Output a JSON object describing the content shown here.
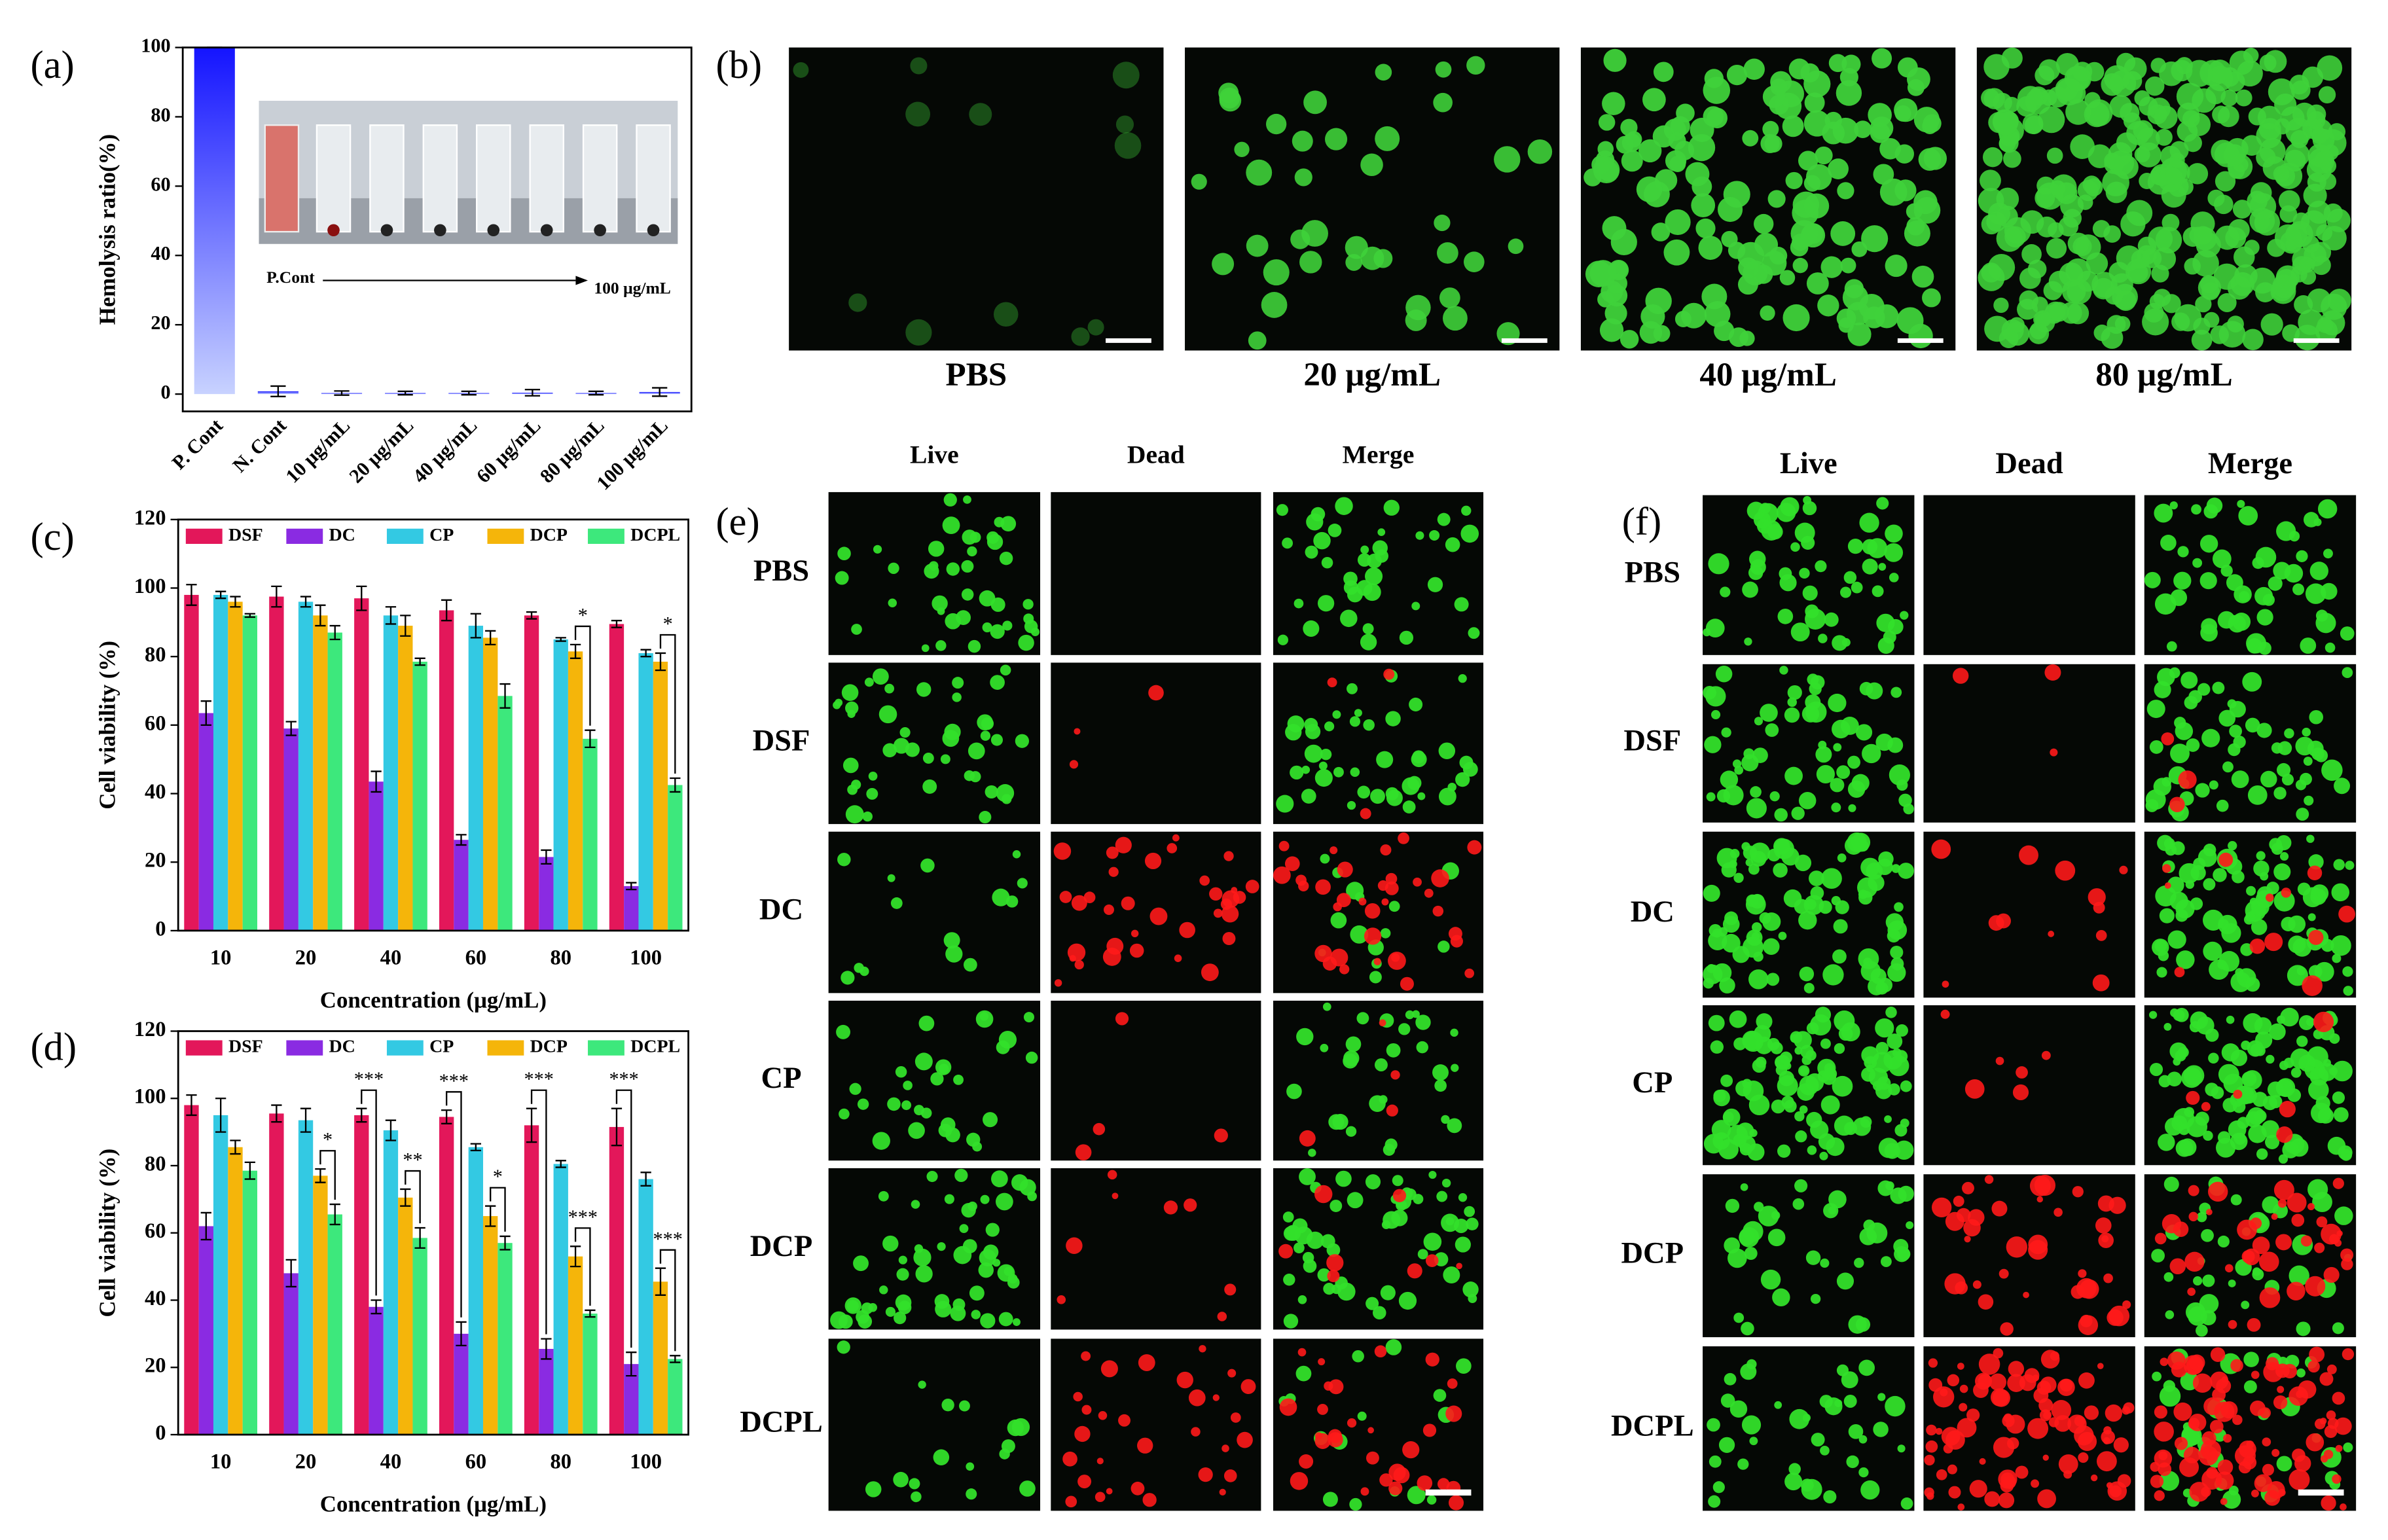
{
  "chart_data": [
    {
      "type": "bar",
      "label": "(a)",
      "ylabel": "Hemolysis ratio(%)",
      "color": "#1414ff",
      "categories": [
        "P. Cont",
        "N. Cont",
        "10 μg/mL",
        "20 μg/mL",
        "40 μg/mL",
        "60 μg/mL",
        "80 μg/mL",
        "100 μg/mL"
      ],
      "values": [
        100,
        0.8,
        0.3,
        0.3,
        0.3,
        0.4,
        0.3,
        0.6
      ],
      "errors": [
        0,
        1.5,
        0.6,
        0.5,
        0.5,
        0.9,
        0.5,
        1.2
      ],
      "ylim": [
        -5,
        100
      ],
      "yticks": [
        0,
        20,
        40,
        60,
        80,
        100
      ],
      "inset_labels": [
        "P.Cont",
        "100 μg/mL"
      ]
    },
    {
      "type": "grouped-bar",
      "label": "(c)",
      "ylabel": "Cell viability (%)",
      "xlabel": "Concentration (μg/mL)",
      "categories": [
        "10",
        "20",
        "40",
        "60",
        "80",
        "100"
      ],
      "series": [
        {
          "name": "DSF",
          "color": "#e3175a",
          "values": [
            98,
            97.5,
            97,
            93.5,
            92,
            89.5
          ],
          "errors": [
            3,
            3,
            3.5,
            3,
            1,
            1
          ]
        },
        {
          "name": "DC",
          "color": "#8a2be2",
          "values": [
            63.5,
            59,
            43.5,
            26.5,
            21.5,
            13
          ],
          "errors": [
            3.5,
            2,
            3,
            1.5,
            2,
            1
          ]
        },
        {
          "name": "CP",
          "color": "#33c9e3",
          "values": [
            98,
            96,
            92,
            89,
            85,
            81
          ],
          "errors": [
            1,
            1.5,
            2.5,
            3.5,
            0.5,
            1
          ]
        },
        {
          "name": "DCP",
          "color": "#f5b50a",
          "values": [
            96,
            92,
            89,
            85.5,
            81.5,
            78.5
          ],
          "errors": [
            1.5,
            3,
            3,
            2,
            2,
            2.5
          ]
        },
        {
          "name": "DCPL",
          "color": "#3de87c",
          "values": [
            92,
            87,
            78.5,
            68.5,
            56,
            42.5
          ],
          "errors": [
            0.5,
            2,
            1,
            3.5,
            2.5,
            2
          ]
        }
      ],
      "ylim": [
        0,
        120
      ],
      "yticks": [
        0,
        20,
        40,
        60,
        80,
        100,
        120
      ],
      "legend": "top",
      "annotations": [
        {
          "text": "*",
          "at": 4,
          "pair": [
            3,
            4
          ]
        },
        {
          "text": "*",
          "at": 5,
          "pair": [
            3,
            4
          ]
        }
      ]
    },
    {
      "type": "grouped-bar",
      "label": "(d)",
      "ylabel": "Cell viability (%)",
      "xlabel": "Concentration (μg/mL)",
      "categories": [
        "10",
        "20",
        "40",
        "60",
        "80",
        "100"
      ],
      "series": [
        {
          "name": "DSF",
          "color": "#e3175a",
          "values": [
            98,
            95.5,
            95,
            94.5,
            92,
            91.5
          ],
          "errors": [
            3,
            2.5,
            2,
            2,
            5,
            5.5
          ]
        },
        {
          "name": "DC",
          "color": "#8a2be2",
          "values": [
            62,
            48,
            38,
            30,
            25.5,
            21
          ],
          "errors": [
            4,
            4,
            2,
            3.5,
            3,
            3.5
          ]
        },
        {
          "name": "CP",
          "color": "#33c9e3",
          "values": [
            95,
            93.5,
            90.5,
            85.5,
            80.5,
            76
          ],
          "errors": [
            5,
            3.5,
            3,
            1,
            1,
            2
          ]
        },
        {
          "name": "DCP",
          "color": "#f5b50a",
          "values": [
            85.5,
            77,
            70.5,
            65,
            53,
            45.5
          ],
          "errors": [
            2,
            2,
            2.5,
            3,
            3,
            4
          ]
        },
        {
          "name": "DCPL",
          "color": "#3de87c",
          "values": [
            78.5,
            65.5,
            58.5,
            57,
            36,
            22.5
          ],
          "errors": [
            2.5,
            3,
            3,
            2,
            1,
            1
          ]
        }
      ],
      "ylim": [
        0,
        120
      ],
      "yticks": [
        0,
        20,
        40,
        60,
        80,
        100,
        120
      ],
      "legend": "top",
      "annotations": [
        {
          "text": "*",
          "at": 1,
          "pair": [
            3,
            4
          ]
        },
        {
          "text": "***",
          "at": 2,
          "pair": [
            0,
            1
          ]
        },
        {
          "text": "**",
          "at": 2,
          "pair": [
            3,
            4
          ]
        },
        {
          "text": "***",
          "at": 3,
          "pair": [
            0,
            1
          ]
        },
        {
          "text": "*",
          "at": 3,
          "pair": [
            3,
            4
          ]
        },
        {
          "text": "***",
          "at": 4,
          "pair": [
            0,
            1
          ]
        },
        {
          "text": "***",
          "at": 4,
          "pair": [
            3,
            4
          ]
        },
        {
          "text": "***",
          "at": 5,
          "pair": [
            0,
            1
          ]
        },
        {
          "text": "***",
          "at": 5,
          "pair": [
            3,
            4
          ]
        }
      ]
    }
  ],
  "panel_b": {
    "label": "(b)",
    "captions": [
      "PBS",
      "20 μg/mL",
      "40 μg/mL",
      "80 μg/mL"
    ]
  },
  "panel_e": {
    "label": "(e)",
    "columns": [
      "Live",
      "Dead",
      "Merge"
    ],
    "rows": [
      "PBS",
      "DSF",
      "DC",
      "CP",
      "DCP",
      "DCPL"
    ]
  },
  "panel_f": {
    "label": "(f)",
    "columns": [
      "Live",
      "Dead",
      "Merge"
    ],
    "rows": [
      "PBS",
      "DSF",
      "DC",
      "CP",
      "DCP",
      "DCPL"
    ]
  }
}
